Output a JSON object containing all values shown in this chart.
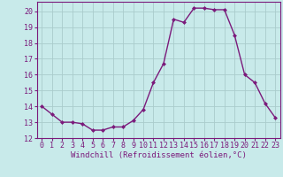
{
  "x": [
    0,
    1,
    2,
    3,
    4,
    5,
    6,
    7,
    8,
    9,
    10,
    11,
    12,
    13,
    14,
    15,
    16,
    17,
    18,
    19,
    20,
    21,
    22,
    23
  ],
  "y": [
    14.0,
    13.5,
    13.0,
    13.0,
    12.9,
    12.5,
    12.5,
    12.7,
    12.7,
    13.1,
    13.8,
    15.5,
    16.7,
    19.5,
    19.3,
    20.2,
    20.2,
    20.1,
    20.1,
    18.5,
    16.0,
    15.5,
    14.2,
    13.3
  ],
  "line_color": "#7b1a7b",
  "marker": "D",
  "markersize": 2.0,
  "linewidth": 1.0,
  "xlim": [
    -0.5,
    23.5
  ],
  "ylim": [
    12,
    20.6
  ],
  "yticks": [
    12,
    13,
    14,
    15,
    16,
    17,
    18,
    19,
    20
  ],
  "xticks": [
    0,
    1,
    2,
    3,
    4,
    5,
    6,
    7,
    8,
    9,
    10,
    11,
    12,
    13,
    14,
    15,
    16,
    17,
    18,
    19,
    20,
    21,
    22,
    23
  ],
  "xlabel": "Windchill (Refroidissement éolien,°C)",
  "background_color": "#c8eaea",
  "grid_color": "#aacccc",
  "tick_label_color": "#7b1a7b",
  "xlabel_color": "#7b1a7b",
  "xlabel_fontsize": 6.5,
  "tick_fontsize": 6.0
}
